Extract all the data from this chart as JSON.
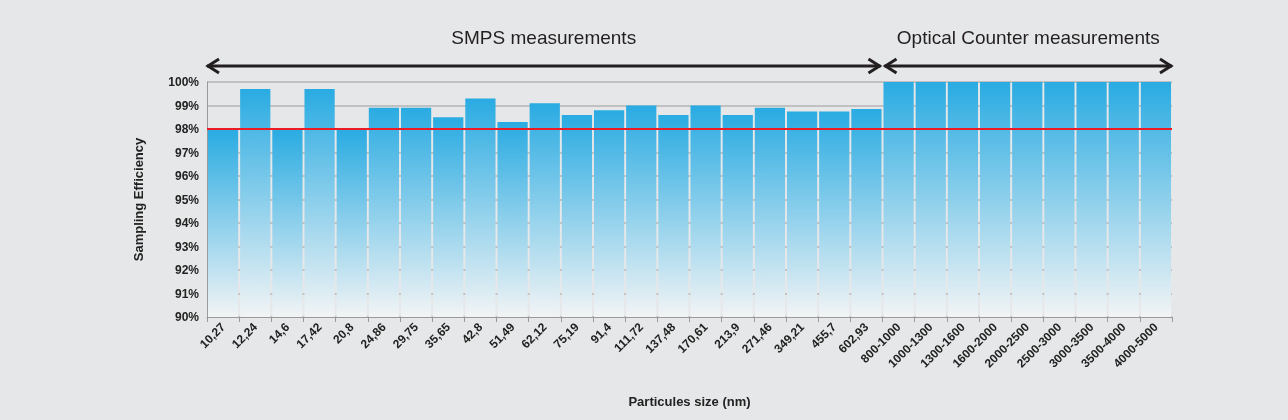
{
  "chart_data": {
    "type": "bar",
    "xlabel": "Particules size (nm)",
    "ylabel": "Sampling Efficiency",
    "categories": [
      "10,27",
      "12,24",
      "14,6",
      "17,42",
      "20,8",
      "24,86",
      "29,75",
      "35,65",
      "42,8",
      "51,49",
      "62,12",
      "75,19",
      "91,4",
      "111,72",
      "137,48",
      "170,61",
      "213,9",
      "271,46",
      "349,21",
      "455,7",
      "602,93",
      "800-1000",
      "1000-1300",
      "1300-1600",
      "1600-2000",
      "2000-2500",
      "2500-3000",
      "3000-3500",
      "3500-4000",
      "4000-5000"
    ],
    "values": [
      98.0,
      99.7,
      98.0,
      99.7,
      98.0,
      98.9,
      98.9,
      98.5,
      99.3,
      98.3,
      99.1,
      98.6,
      98.8,
      99.0,
      98.6,
      99.0,
      98.6,
      98.9,
      98.75,
      98.75,
      98.85,
      100,
      100,
      100,
      100,
      100,
      100,
      100,
      100,
      100
    ],
    "color": "#29abe2",
    "ylim": [
      90,
      100
    ],
    "yticks": [
      {
        "value": 90,
        "label": "90%"
      },
      {
        "value": 91,
        "label": "91%"
      },
      {
        "value": 92,
        "label": "92%"
      },
      {
        "value": 93,
        "label": "93%"
      },
      {
        "value": 94,
        "label": "94%"
      },
      {
        "value": 95,
        "label": "95%"
      },
      {
        "value": 96,
        "label": "96%"
      },
      {
        "value": 97,
        "label": "97%"
      },
      {
        "value": 98,
        "label": "98%"
      },
      {
        "value": 99,
        "label": "99%"
      },
      {
        "value": 100,
        "label": "100%"
      }
    ],
    "grid": "y",
    "ref_lines": [
      {
        "axis": "y",
        "value": 98,
        "color": "#ed1c24"
      }
    ],
    "annotations": [
      "SMPS measurements",
      "Optical Counter measurements"
    ]
  }
}
